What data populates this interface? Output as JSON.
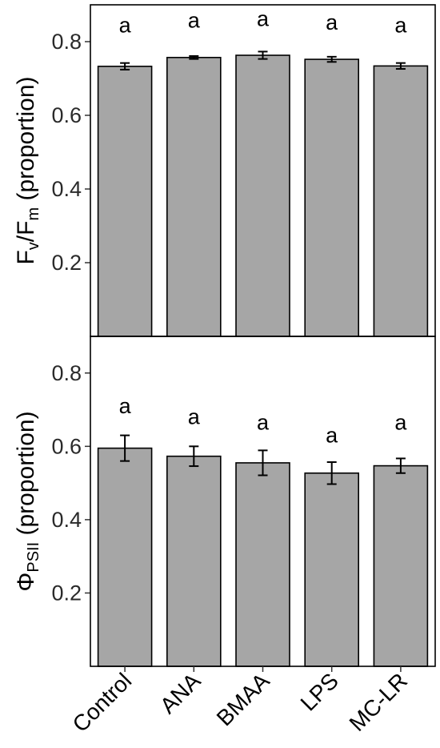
{
  "chart_data": {
    "type": "bar",
    "categories": [
      "Control",
      "ANA",
      "BMAA",
      "LPS",
      "MC-LR"
    ],
    "colors": {
      "bar": "#a6a6a6",
      "outline": "#000000"
    },
    "panels": [
      {
        "ylabel": {
          "main": "F",
          "sub1": "v",
          "mid": "/F",
          "sub2": "m",
          "tail": " (proportion)"
        },
        "ylim": [
          0,
          0.9
        ],
        "yticks": [
          0.2,
          0.4,
          0.6,
          0.8
        ],
        "ytick_labels": [
          "0.2",
          "0.4",
          "0.6",
          "0.8"
        ],
        "values": [
          0.733,
          0.757,
          0.763,
          0.752,
          0.734
        ],
        "errors": [
          0.009,
          0.004,
          0.01,
          0.007,
          0.008
        ],
        "significance": [
          "a",
          "a",
          "a",
          "a",
          "a"
        ],
        "sig_y": [
          0.845,
          0.858,
          0.862,
          0.852,
          0.845
        ]
      },
      {
        "ylabel": {
          "main": "Φ",
          "sub1": "PSII",
          "tail": " (proportion)"
        },
        "ylim": [
          0,
          0.9
        ],
        "yticks": [
          0.2,
          0.4,
          0.6,
          0.8
        ],
        "ytick_labels": [
          "0.2",
          "0.4",
          "0.6",
          "0.8"
        ],
        "values": [
          0.595,
          0.573,
          0.555,
          0.527,
          0.547
        ],
        "errors": [
          0.035,
          0.027,
          0.034,
          0.03,
          0.02
        ],
        "significance": [
          "a",
          "a",
          "a",
          "a",
          "a"
        ],
        "sig_y": [
          0.71,
          0.68,
          0.665,
          0.63,
          0.665
        ]
      }
    ]
  }
}
